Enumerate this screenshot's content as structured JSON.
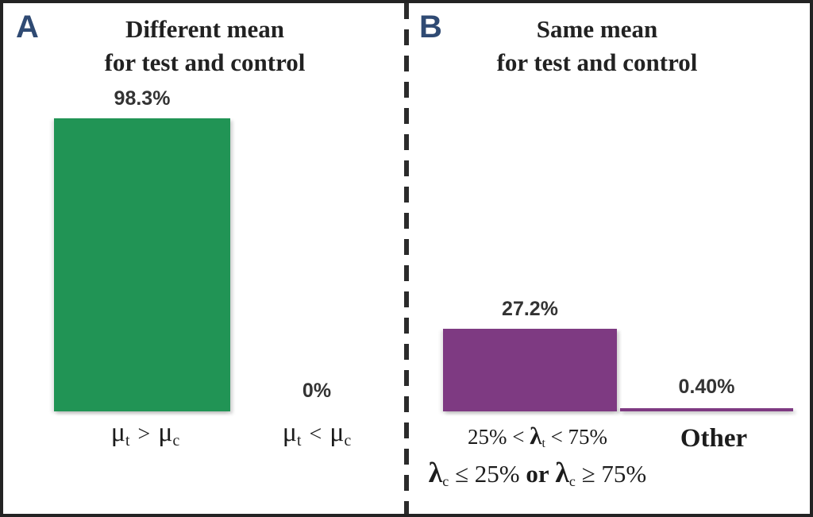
{
  "figure_title": "",
  "colors": {
    "green_bar": "#219455",
    "purple_bar": "#7e3a82",
    "panel_letter": "#2f4a73",
    "border": "#232323",
    "divider_dash": "#2b2b2b",
    "value_label_text": "#333333",
    "title_text": "#222222"
  },
  "panel_a": {
    "label": "A",
    "title": [
      "Different mean",
      "for test and control"
    ],
    "bar1": {
      "value": "98.3%",
      "cat": {
        "mu1": "μ",
        "sub1": "t",
        "op": ">",
        "mu2": "μ",
        "sub2": "c"
      }
    },
    "bar2": {
      "value": "0%",
      "cat": {
        "mu1": "μ",
        "sub1": "t",
        "op": "<",
        "mu2": "μ",
        "sub2": "c"
      }
    }
  },
  "panel_b": {
    "label": "B",
    "title": [
      "Same mean",
      "for test and control"
    ],
    "bar1": {
      "value": "27.2%",
      "cat_line1": {
        "pre": "25% < ",
        "lambda": "λ",
        "sub": "t",
        "post": " < 75%"
      },
      "cat_line2": {
        "lambda1": "λ",
        "sub1": "c",
        "mid1": " ≤ 25% ",
        "or": "or",
        "sp": " ",
        "lambda2": "λ",
        "sub2": "c",
        "mid2": " ≥ 75%"
      }
    },
    "bar2": {
      "value": "0.40%",
      "cat": "Other"
    }
  },
  "chart_data": [
    {
      "type": "bar",
      "panel": "A",
      "title": "Different mean for test and control",
      "categories": [
        "μt > μc",
        "μt < μc"
      ],
      "values": [
        98.3,
        0
      ],
      "data_labels": [
        "98.3%",
        "0%"
      ],
      "bar_color": "#219455",
      "unit": "percent",
      "ylim": [
        0,
        100
      ],
      "grid": false,
      "axes_hidden": true,
      "legend": "none"
    },
    {
      "type": "bar",
      "panel": "B",
      "title": "Same mean for test and control",
      "categories": [
        "25% < λt < 75% and λc ≤ 25% or λc ≥ 75%",
        "Other"
      ],
      "values": [
        27.2,
        0.4
      ],
      "data_labels": [
        "27.2%",
        "0.40%"
      ],
      "bar_color": "#7e3a82",
      "unit": "percent",
      "ylim": [
        0,
        100
      ],
      "grid": false,
      "axes_hidden": true,
      "legend": "none"
    }
  ]
}
